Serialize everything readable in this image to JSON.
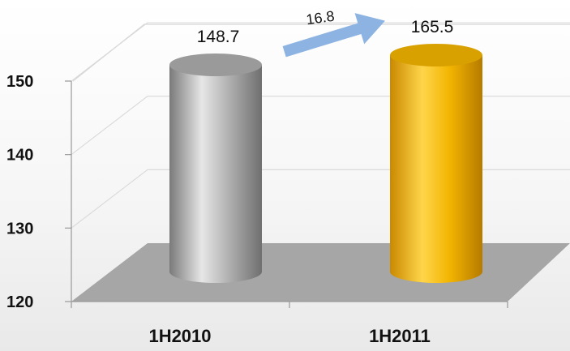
{
  "chart_data": {
    "type": "bar",
    "style": "3d-cylinder",
    "categories": [
      "1H2010",
      "1H2011"
    ],
    "values": [
      148.7,
      165.5
    ],
    "data_labels": [
      "148.7",
      "165.5"
    ],
    "bar_colors": [
      "#a9a9a9",
      "#f5b800"
    ],
    "ylim": [
      120,
      150
    ],
    "yticks": [
      120,
      130,
      140,
      150
    ],
    "ytick_labels": [
      "120",
      "130",
      "140",
      "150"
    ],
    "grid": true,
    "legend": "none",
    "annotation": {
      "text": "16.8",
      "type": "arrow",
      "color": "#8db3e2"
    }
  }
}
